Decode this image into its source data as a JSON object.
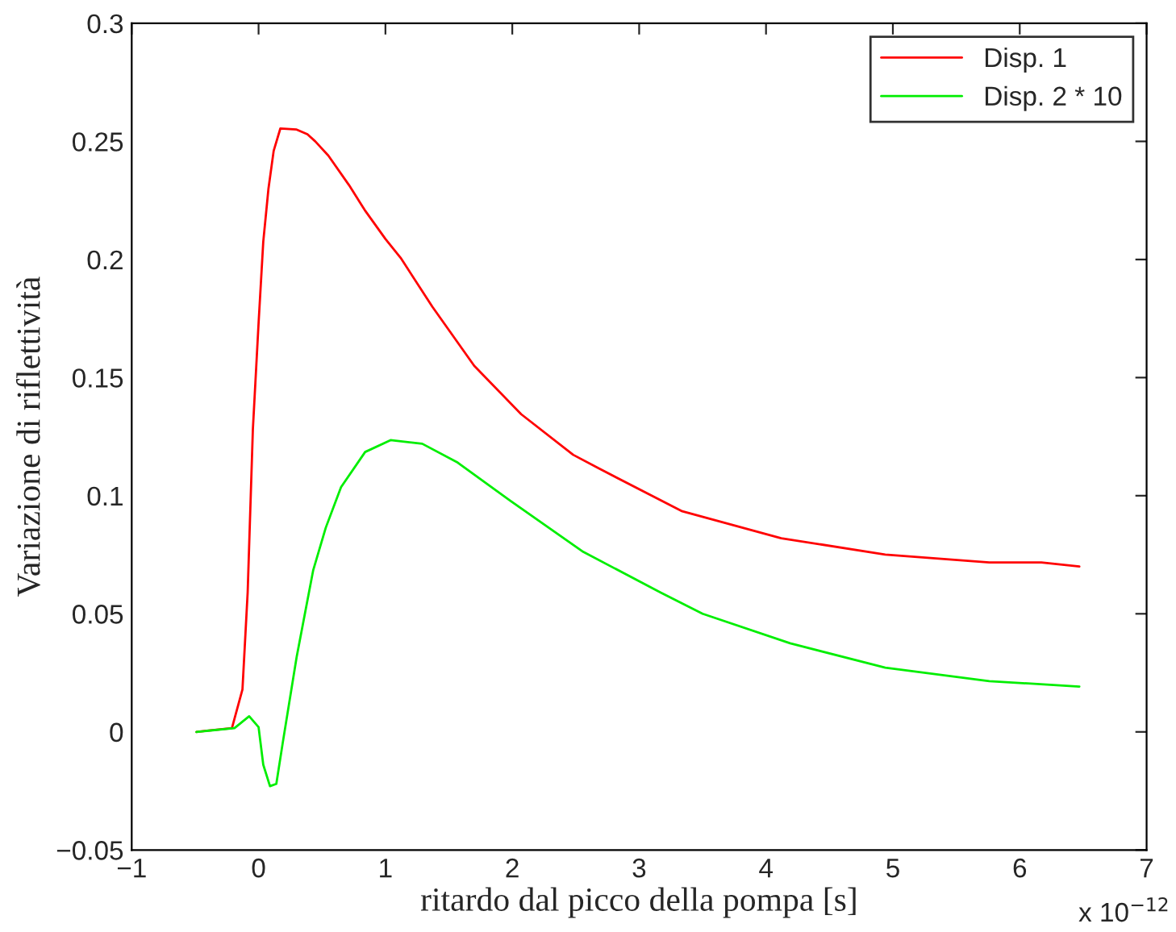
{
  "chart_data": {
    "type": "line",
    "xlabel": "ritardo dal picco della pompa [s]",
    "ylabel": "Variazione di riflettività",
    "annotations": [
      "x 10$^{−12}$"
    ],
    "xlim": [
      -1,
      7
    ],
    "xticks": [
      {
        "value": -1,
        "label": "−1"
      },
      0,
      1,
      2,
      3,
      4,
      5,
      6,
      7
    ],
    "ylim": [
      -0.05,
      0.3
    ],
    "yticks": [
      {
        "value": -0.05,
        "label": "−0.05"
      },
      0,
      0.05,
      0.1,
      0.15,
      0.2,
      0.25,
      0.3
    ],
    "grid": false,
    "legend": "top right",
    "line_style": "solid",
    "marker": "none",
    "series": [
      {
        "name": "Disp. 1",
        "color": "#ff0000",
        "x": [
          -0.49,
          -0.21,
          -0.127,
          -0.086,
          -0.045,
          0.0,
          0.037,
          0.078,
          0.119,
          0.172,
          0.3,
          0.385,
          0.447,
          0.55,
          0.713,
          0.836,
          1.0,
          1.12,
          1.37,
          1.7,
          2.07,
          2.48,
          2.68,
          3.34,
          4.12,
          4.94,
          5.76,
          6.17,
          6.47
        ],
        "values": [
          0,
          0.0016,
          0.018,
          0.059,
          0.128,
          0.173,
          0.2075,
          0.23,
          0.246,
          0.2555,
          0.255,
          0.253,
          0.25,
          0.244,
          0.2315,
          0.221,
          0.2087,
          0.2007,
          0.18,
          0.155,
          0.1345,
          0.1173,
          0.1116,
          0.0934,
          0.082,
          0.0751,
          0.0717,
          0.0717,
          0.07
        ]
      },
      {
        "name": "Disp. 2 * 10",
        "color": "#00ee00",
        "x": [
          -0.49,
          -0.19,
          -0.074,
          0.0,
          0.037,
          0.09,
          0.14,
          0.19,
          0.3,
          0.43,
          0.53,
          0.65,
          0.84,
          1.04,
          1.29,
          1.57,
          1.98,
          2.56,
          3.17,
          3.5,
          4.19,
          4.94,
          5.76,
          6.47
        ],
        "values": [
          0,
          0.0016,
          0.0066,
          0.002,
          -0.0139,
          -0.023,
          -0.022,
          -0.0048,
          0.0317,
          0.0683,
          0.0865,
          0.1036,
          0.1185,
          0.1235,
          0.122,
          0.114,
          0.098,
          0.0762,
          0.059,
          0.05,
          0.0375,
          0.0272,
          0.0215,
          0.0192
        ]
      }
    ]
  }
}
